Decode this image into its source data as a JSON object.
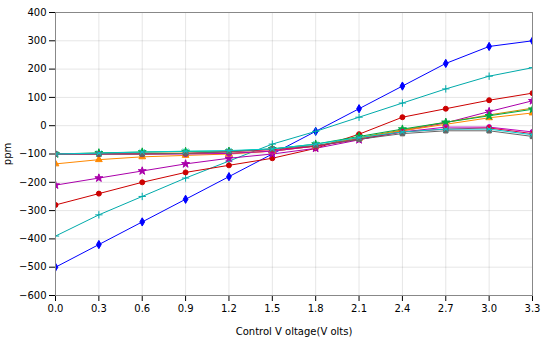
{
  "chart_data": {
    "type": "line",
    "xlabel": "Control V oltage(V olts)",
    "ylabel": "ppm",
    "xlim": [
      0,
      3.3
    ],
    "ylim": [
      -600,
      400
    ],
    "xticks": [
      {
        "value": 0,
        "label": "0.0"
      },
      0.3,
      0.6,
      0.9,
      1.2,
      1.5,
      1.8,
      2.1,
      2.4,
      2.7,
      {
        "value": 3.0,
        "label": "3.0"
      },
      3.3
    ],
    "yticks": [
      -600,
      -500,
      -400,
      -300,
      -200,
      -100,
      0,
      100,
      200,
      300,
      400
    ],
    "grid": true,
    "x": [
      0,
      0.3,
      0.6,
      0.9,
      1.2,
      1.5,
      1.8,
      2.1,
      2.4,
      2.7,
      3.0,
      3.3
    ],
    "series": [
      {
        "color": "#0000FF",
        "marker": "diamond",
        "values": [
          -500,
          -420,
          -340,
          -260,
          -180,
          -100,
          -20,
          60,
          140,
          220,
          280,
          300
        ]
      },
      {
        "color": "#00AAAA",
        "marker": "plus",
        "values": [
          -390,
          -315,
          -250,
          -185,
          -125,
          -65,
          -20,
          30,
          80,
          130,
          175,
          205
        ]
      },
      {
        "color": "#CC0000",
        "marker": "circle",
        "values": [
          -280,
          -240,
          -200,
          -165,
          -140,
          -115,
          -80,
          -30,
          30,
          60,
          90,
          115
        ]
      },
      {
        "color": "#AA00AA",
        "marker": "star",
        "values": [
          -210,
          -185,
          -160,
          -135,
          -115,
          -100,
          -80,
          -50,
          -18,
          10,
          50,
          88
        ]
      },
      {
        "color": "#FF8800",
        "marker": "triangle",
        "values": [
          -135,
          -120,
          -110,
          -105,
          -100,
          -90,
          -72,
          -45,
          -18,
          5,
          28,
          45
        ]
      },
      {
        "color": "#CC8800",
        "marker": "plus",
        "values": [
          -100,
          -98,
          -97,
          -97,
          -97,
          -90,
          -72,
          -42,
          -15,
          12,
          38,
          62
        ]
      },
      {
        "color": "#00AA44",
        "marker": "star",
        "values": [
          -100,
          -96,
          -93,
          -91,
          -90,
          -82,
          -65,
          -38,
          -12,
          12,
          35,
          58
        ]
      },
      {
        "color": "#BB00BB",
        "marker": "circle",
        "values": [
          -100,
          -100,
          -100,
          -100,
          -98,
          -90,
          -72,
          -48,
          -22,
          -5,
          -5,
          -22
        ]
      },
      {
        "color": "#DD0044",
        "marker": "circle",
        "values": [
          -100,
          -100,
          -100,
          -98,
          -92,
          -85,
          -72,
          -48,
          -22,
          -12,
          -8,
          -28
        ]
      },
      {
        "color": "#666666",
        "marker": "square",
        "values": [
          -100,
          -100,
          -100,
          -98,
          -92,
          -82,
          -70,
          -48,
          -28,
          -18,
          -18,
          -38
        ]
      },
      {
        "color": "#00CCCC",
        "marker": "times",
        "values": [
          -100,
          -97,
          -93,
          -90,
          -88,
          -82,
          -65,
          -42,
          -22,
          -12,
          -12,
          -32
        ]
      }
    ]
  }
}
